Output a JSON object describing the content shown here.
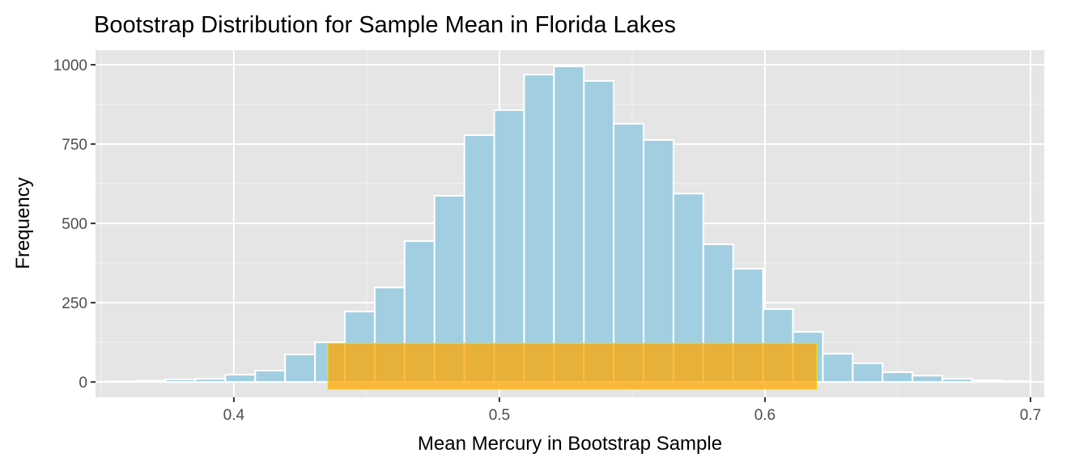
{
  "chart_data": {
    "type": "bar",
    "title": "Bootstrap Distribution for Sample Mean in Florida Lakes",
    "xlabel": "Mean Mercury in Bootstrap Sample",
    "ylabel": "Frequency",
    "bin_start": 0.3518,
    "bin_width": 0.01125,
    "values": [
      2,
      4,
      8,
      10,
      23,
      36,
      87,
      125,
      222,
      298,
      444,
      587,
      778,
      857,
      969,
      995,
      949,
      814,
      763,
      594,
      434,
      357,
      230,
      158,
      89,
      59,
      31,
      20,
      10,
      5,
      3
    ],
    "xlim": [
      0.3479,
      0.7052
    ],
    "ylim": [
      -48,
      1046
    ],
    "xticks": [
      0.4,
      0.5,
      0.6,
      0.7
    ],
    "xtick_labels": [
      "0.4",
      "0.5",
      "0.6",
      "0.7"
    ],
    "yticks": [
      0,
      250,
      500,
      750,
      1000
    ],
    "ytick_labels": [
      "0",
      "250",
      "500",
      "750",
      "1000"
    ],
    "grid": true,
    "interval": {
      "xmin": 0.4354,
      "xmax": 0.6195,
      "ymin": -23,
      "ymax": 122
    },
    "colors": {
      "bar_fill": "#a1cfe1",
      "bar_edge": "#ffffff",
      "interval": "#ffa500",
      "panel": "#e5e5e5"
    }
  }
}
